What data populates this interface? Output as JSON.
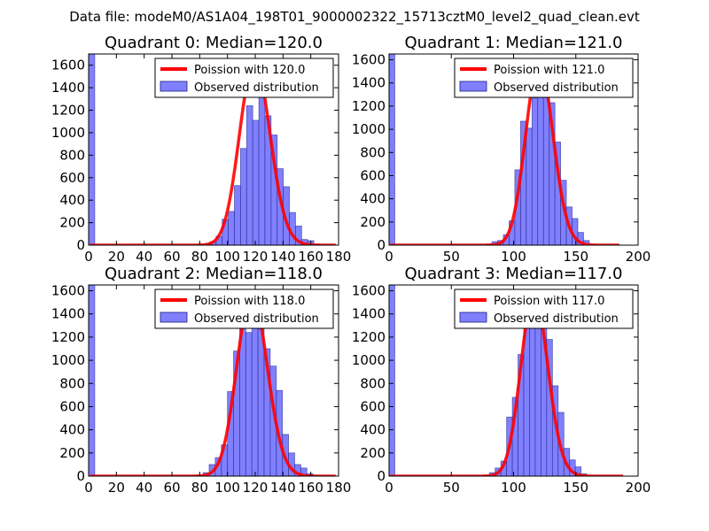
{
  "figure": {
    "suptitle": "Data file: modeM0/AS1A04_198T01_9000002322_15713cztM0_level2_quad_clean.evt"
  },
  "colors": {
    "bar_fill": "#8080ff",
    "bar_edge": "#1a1a80",
    "line": "#ff0000",
    "axes": "#000000",
    "background": "#ffffff"
  },
  "chart_data": [
    {
      "type": "bar",
      "title": "Quadrant 0: Median=120.0",
      "xlim": [
        0,
        180
      ],
      "ylim": [
        0,
        1700
      ],
      "xticks": [
        0,
        20,
        40,
        60,
        80,
        100,
        120,
        140,
        160,
        180
      ],
      "yticks": [
        0,
        200,
        400,
        600,
        800,
        1000,
        1200,
        1400,
        1600
      ],
      "bin_width": 4.4,
      "bars": [
        {
          "x": 0,
          "y": 1700
        },
        {
          "x": 83,
          "y": 10
        },
        {
          "x": 87.4,
          "y": 30
        },
        {
          "x": 91.8,
          "y": 80
        },
        {
          "x": 96.2,
          "y": 230
        },
        {
          "x": 100.6,
          "y": 300
        },
        {
          "x": 105,
          "y": 530
        },
        {
          "x": 109.4,
          "y": 860
        },
        {
          "x": 113.8,
          "y": 1240
        },
        {
          "x": 118.2,
          "y": 1110
        },
        {
          "x": 122.6,
          "y": 1580
        },
        {
          "x": 127,
          "y": 1150
        },
        {
          "x": 131.4,
          "y": 980
        },
        {
          "x": 135.8,
          "y": 680
        },
        {
          "x": 140.2,
          "y": 520
        },
        {
          "x": 144.6,
          "y": 290
        },
        {
          "x": 149,
          "y": 170
        },
        {
          "x": 153.4,
          "y": 50
        },
        {
          "x": 157.8,
          "y": 40
        },
        {
          "x": 162.2,
          "y": 10
        }
      ],
      "poisson_lambda": 120.0,
      "poisson_scale": 1635,
      "poisson_xmax": 178,
      "legend": [
        "Poission with 120.0",
        "Observed distribution"
      ],
      "legend_loc": "upper right"
    },
    {
      "type": "bar",
      "title": "Quadrant 1: Median=121.0",
      "xlim": [
        0,
        200
      ],
      "ylim": [
        0,
        1650
      ],
      "xticks": [
        0,
        50,
        100,
        150,
        200
      ],
      "yticks": [
        0,
        200,
        400,
        600,
        800,
        1000,
        1200,
        1400,
        1600
      ],
      "bin_width": 4.6,
      "bars": [
        {
          "x": 0,
          "y": 1650
        },
        {
          "x": 78,
          "y": 10
        },
        {
          "x": 82.6,
          "y": 30
        },
        {
          "x": 87.2,
          "y": 40
        },
        {
          "x": 91.8,
          "y": 90
        },
        {
          "x": 96.4,
          "y": 210
        },
        {
          "x": 101,
          "y": 650
        },
        {
          "x": 105.6,
          "y": 1070
        },
        {
          "x": 110.2,
          "y": 1010
        },
        {
          "x": 114.8,
          "y": 1270
        },
        {
          "x": 119.4,
          "y": 1570
        },
        {
          "x": 124,
          "y": 1560
        },
        {
          "x": 128.6,
          "y": 1230
        },
        {
          "x": 133.2,
          "y": 890
        },
        {
          "x": 137.8,
          "y": 560
        },
        {
          "x": 142.4,
          "y": 330
        },
        {
          "x": 147,
          "y": 230
        },
        {
          "x": 151.6,
          "y": 110
        },
        {
          "x": 156.2,
          "y": 40
        }
      ],
      "poisson_lambda": 121.0,
      "poisson_scale": 1570,
      "poisson_xmax": 185,
      "legend": [
        "Poission with 121.0",
        "Observed distribution"
      ],
      "legend_loc": "upper right"
    },
    {
      "type": "bar",
      "title": "Quadrant 2: Median=118.0",
      "xlim": [
        0,
        180
      ],
      "ylim": [
        0,
        1650
      ],
      "xticks": [
        0,
        20,
        40,
        60,
        80,
        100,
        120,
        140,
        160,
        180
      ],
      "yticks": [
        0,
        200,
        400,
        600,
        800,
        1000,
        1200,
        1400,
        1600
      ],
      "bin_width": 4.4,
      "bars": [
        {
          "x": 0,
          "y": 1650
        },
        {
          "x": 78,
          "y": 10
        },
        {
          "x": 82.4,
          "y": 30
        },
        {
          "x": 86.8,
          "y": 100
        },
        {
          "x": 91.2,
          "y": 160
        },
        {
          "x": 95.6,
          "y": 270
        },
        {
          "x": 100,
          "y": 730
        },
        {
          "x": 104.4,
          "y": 1080
        },
        {
          "x": 108.8,
          "y": 1410
        },
        {
          "x": 113.2,
          "y": 1240
        },
        {
          "x": 117.6,
          "y": 1430
        },
        {
          "x": 122,
          "y": 1270
        },
        {
          "x": 126.4,
          "y": 1100
        },
        {
          "x": 130.8,
          "y": 950
        },
        {
          "x": 135.2,
          "y": 740
        },
        {
          "x": 139.6,
          "y": 360
        },
        {
          "x": 144,
          "y": 200
        },
        {
          "x": 148.4,
          "y": 100
        },
        {
          "x": 152.8,
          "y": 70
        },
        {
          "x": 157.2,
          "y": 20
        }
      ],
      "poisson_lambda": 118.0,
      "poisson_scale": 1580,
      "poisson_xmax": 178,
      "legend": [
        "Poission with 118.0",
        "Observed distribution"
      ],
      "legend_loc": "upper right"
    },
    {
      "type": "bar",
      "title": "Quadrant 3: Median=117.0",
      "xlim": [
        0,
        200
      ],
      "ylim": [
        0,
        1650
      ],
      "xticks": [
        0,
        50,
        100,
        150,
        200
      ],
      "yticks": [
        0,
        200,
        400,
        600,
        800,
        1000,
        1200,
        1400,
        1600
      ],
      "bin_width": 4.6,
      "bars": [
        {
          "x": 0,
          "y": 1650
        },
        {
          "x": 76,
          "y": 10
        },
        {
          "x": 80.6,
          "y": 30
        },
        {
          "x": 85.2,
          "y": 70
        },
        {
          "x": 89.8,
          "y": 130
        },
        {
          "x": 94.4,
          "y": 510
        },
        {
          "x": 99,
          "y": 680
        },
        {
          "x": 103.6,
          "y": 1050
        },
        {
          "x": 108.2,
          "y": 1390
        },
        {
          "x": 112.8,
          "y": 1310
        },
        {
          "x": 117.4,
          "y": 1530
        },
        {
          "x": 122,
          "y": 1460
        },
        {
          "x": 126.6,
          "y": 1180
        },
        {
          "x": 131.2,
          "y": 780
        },
        {
          "x": 135.8,
          "y": 550
        },
        {
          "x": 140.4,
          "y": 240
        },
        {
          "x": 145,
          "y": 140
        },
        {
          "x": 149.6,
          "y": 80
        },
        {
          "x": 154.2,
          "y": 20
        }
      ],
      "poisson_lambda": 117.0,
      "poisson_scale": 1570,
      "poisson_xmax": 188,
      "legend": [
        "Poission with 117.0",
        "Observed distribution"
      ],
      "legend_loc": "upper right"
    }
  ]
}
